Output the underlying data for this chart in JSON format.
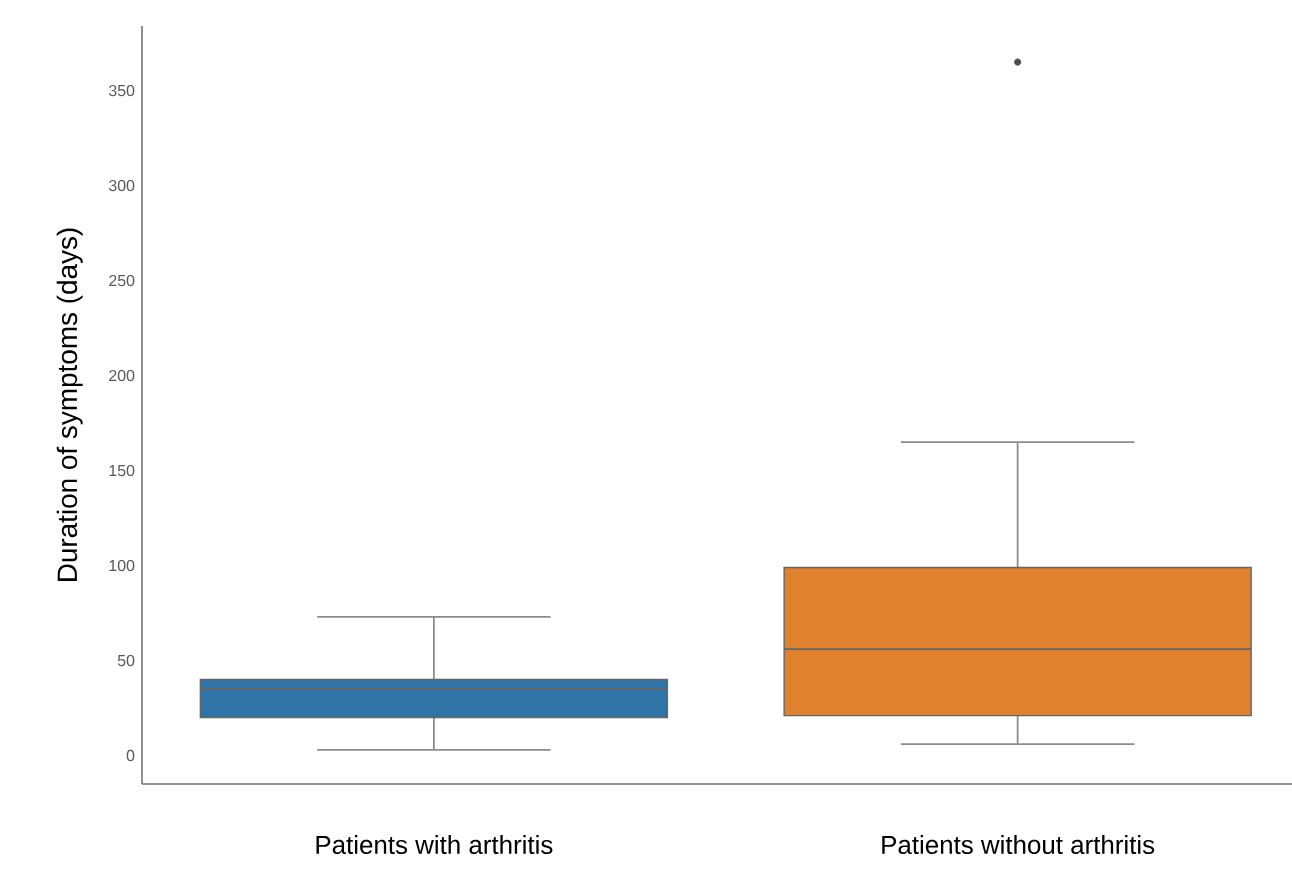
{
  "chart_data": {
    "type": "box",
    "ylabel": "Duration of symptoms (days)",
    "categories": [
      "Patients with arthritis",
      "Patients without arthritis"
    ],
    "colors": [
      "#2f74a6",
      "#e0812e"
    ],
    "boxes": [
      {
        "low": 3,
        "q1": 20,
        "median": 35,
        "q3": 40,
        "high": 73
      },
      {
        "low": 6,
        "q1": 21,
        "median": 56,
        "q3": 99,
        "high": 165,
        "outliers": [
          365
        ]
      }
    ],
    "ylim": [
      -15,
      384
    ],
    "yticks": [
      0,
      50,
      100,
      150,
      200,
      250,
      300,
      350
    ]
  }
}
